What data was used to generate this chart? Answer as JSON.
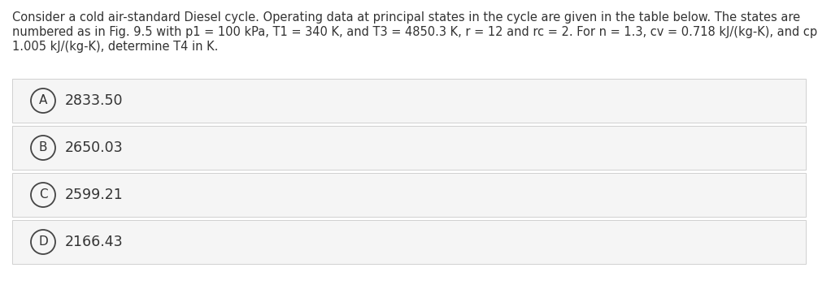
{
  "question_lines": [
    "Consider a cold air-standard Diesel cycle. Operating data at principal states in the cycle are given in the table below. The states are",
    "numbered as in Fig. 9.5 with p1 = 100 kPa, T1 = 340 K, and T3 = 4850.3 K, r = 12 and rc = 2. For n = 1.3, cv = 0.718 kJ/(kg-K), and cp =",
    "1.005 kJ/(kg-K), determine T4 in K."
  ],
  "options": [
    {
      "label": "A",
      "value": "2833.50"
    },
    {
      "label": "B",
      "value": "2650.03"
    },
    {
      "label": "C",
      "value": "2599.21"
    },
    {
      "label": "D",
      "value": "2166.43"
    }
  ],
  "bg_color": "#ffffff",
  "option_bg_color": "#f5f5f5",
  "option_border_color": "#d0d0d0",
  "text_color": "#333333",
  "circle_edge_color": "#444444",
  "font_size_question": 10.5,
  "font_size_option": 12.5,
  "fig_width": 10.06,
  "fig_height": 3.51,
  "dpi": 100
}
